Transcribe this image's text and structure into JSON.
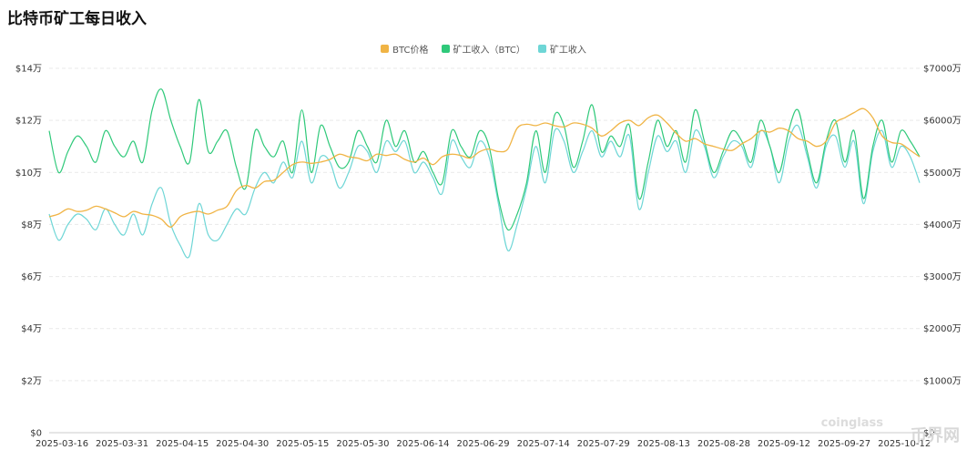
{
  "title": "比特币矿工每日收入",
  "watermark": {
    "brand": "coinglass",
    "site": "币界网"
  },
  "colors": {
    "btc_price": "#F0B445",
    "miner_btc": "#2FC97A",
    "miner_usd": "#6ED6D6",
    "grid": "#E9E9E9"
  },
  "chart_data": {
    "type": "line",
    "x_labels": [
      "2025-03-16",
      "2025-03-31",
      "2025-04-15",
      "2025-04-30",
      "2025-05-15",
      "2025-05-30",
      "2025-06-14",
      "2025-06-29",
      "2025-07-14",
      "2025-07-29",
      "2025-08-13",
      "2025-08-28",
      "2025-09-12",
      "2025-09-27",
      "2025-10-12"
    ],
    "x_start": "2025-03-16",
    "x_end": "2025-10-19",
    "y_left": {
      "min": 0,
      "max": 140000,
      "ticks": [
        "$0",
        "$2万",
        "$4万",
        "$6万",
        "$8万",
        "$10万",
        "$12万",
        "$14万"
      ]
    },
    "y_right": {
      "min": 0,
      "max": 70000000,
      "ticks": [
        "$0",
        "$1000万",
        "$2000万",
        "$3000万",
        "$4000万",
        "$5000万",
        "$6000万",
        "$7000万"
      ]
    },
    "series": [
      {
        "name": "BTC价格",
        "axis": "left",
        "values": [
          83000,
          84000,
          86000,
          85000,
          85500,
          87000,
          86000,
          84500,
          83000,
          85000,
          84000,
          83500,
          82000,
          79000,
          83000,
          84500,
          85000,
          84000,
          85500,
          87000,
          93000,
          95000,
          94000,
          96500,
          97000,
          100000,
          103000,
          104000,
          103500,
          104000,
          105000,
          107000,
          106000,
          105500,
          104500,
          107000,
          106500,
          107000,
          105000,
          104000,
          105500,
          103000,
          106000,
          107000,
          106500,
          105500,
          108000,
          109000,
          108000,
          109000,
          117000,
          118500,
          118000,
          119000,
          118000,
          117500,
          119000,
          118500,
          117000,
          114000,
          116000,
          119000,
          120000,
          118000,
          121000,
          122000,
          119000,
          115000,
          112000,
          113000,
          111000,
          110000,
          109000,
          108500,
          111000,
          113000,
          116000,
          115500,
          117000,
          116000,
          113000,
          112000,
          110000,
          112000,
          119000,
          121000,
          123000,
          124500,
          121000,
          114000,
          111500,
          111000,
          108500,
          106000
        ]
      },
      {
        "name": "矿工收入（BTC）",
        "axis": "right",
        "values": [
          58000000,
          50000000,
          54000000,
          57000000,
          55000000,
          52000000,
          58000000,
          55000000,
          53000000,
          56000000,
          52000000,
          62000000,
          66000000,
          60000000,
          55000000,
          52000000,
          64000000,
          54000000,
          56000000,
          58000000,
          51000000,
          47000000,
          58000000,
          55000000,
          53000000,
          56000000,
          50000000,
          62000000,
          50000000,
          59000000,
          55000000,
          51000000,
          52000000,
          58000000,
          55000000,
          52000000,
          60000000,
          55000000,
          58000000,
          52000000,
          54000000,
          50000000,
          48000000,
          58000000,
          55000000,
          53000000,
          58000000,
          55000000,
          45000000,
          39000000,
          42000000,
          48000000,
          58000000,
          50000000,
          61000000,
          59000000,
          51000000,
          56000000,
          63000000,
          54000000,
          57000000,
          55000000,
          59000000,
          45000000,
          52000000,
          60000000,
          55000000,
          58000000,
          52000000,
          62000000,
          56000000,
          50000000,
          54000000,
          58000000,
          56000000,
          52000000,
          60000000,
          55000000,
          50000000,
          58000000,
          62000000,
          54000000,
          48000000,
          56000000,
          60000000,
          52000000,
          58000000,
          45000000,
          55000000,
          60000000,
          52000000,
          58000000,
          56000000,
          53000000
        ]
      },
      {
        "name": "矿工收入",
        "axis": "right",
        "values": [
          42000000,
          37000000,
          40000000,
          42000000,
          41000000,
          39000000,
          43000000,
          40000000,
          38000000,
          42000000,
          38000000,
          44000000,
          47000000,
          40000000,
          36000000,
          34000000,
          44000000,
          38000000,
          37000000,
          40000000,
          43000000,
          42000000,
          47000000,
          50000000,
          48000000,
          52000000,
          49000000,
          56000000,
          48000000,
          53000000,
          52000000,
          47000000,
          50000000,
          55000000,
          54000000,
          50000000,
          56000000,
          54000000,
          56000000,
          50000000,
          52000000,
          49000000,
          46000000,
          56000000,
          53000000,
          51000000,
          56000000,
          53000000,
          44000000,
          35000000,
          40000000,
          47000000,
          55000000,
          48000000,
          58000000,
          56000000,
          50000000,
          54000000,
          58000000,
          53000000,
          56000000,
          53000000,
          57000000,
          43000000,
          50000000,
          57000000,
          54000000,
          56000000,
          50000000,
          58000000,
          55000000,
          49000000,
          53000000,
          56000000,
          55000000,
          51000000,
          58000000,
          55000000,
          48000000,
          56000000,
          59000000,
          53000000,
          47000000,
          55000000,
          57000000,
          51000000,
          56000000,
          44000000,
          54000000,
          58000000,
          51000000,
          55000000,
          53000000,
          48000000
        ]
      }
    ]
  }
}
